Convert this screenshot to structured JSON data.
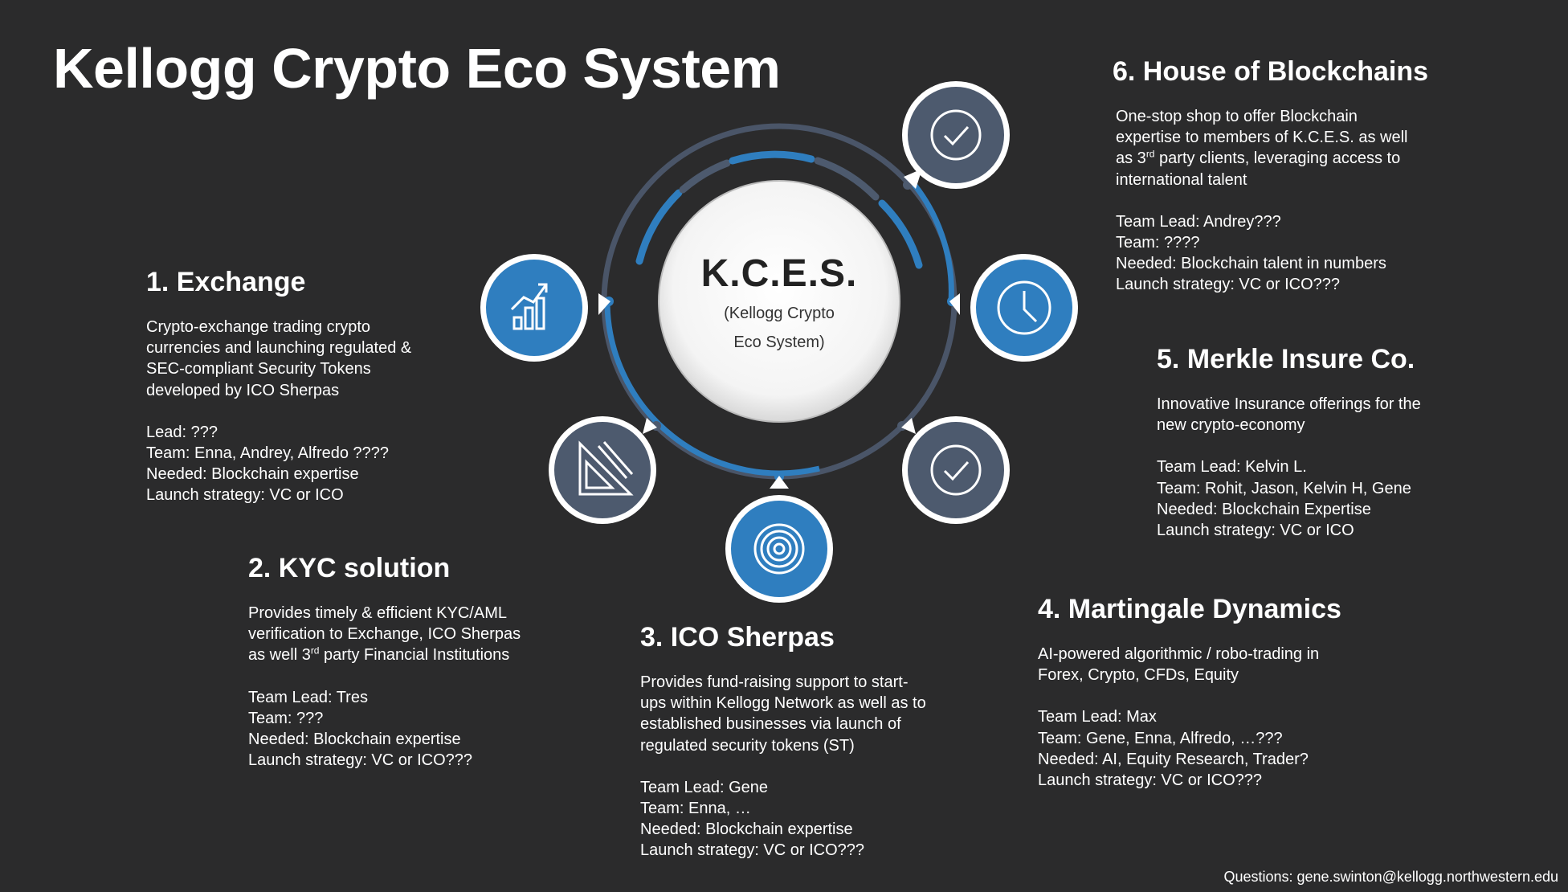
{
  "title": "Kellogg Crypto Eco System",
  "center": {
    "title": "K.C.E.S.",
    "subtitle_line1": "(Kellogg Crypto",
    "subtitle_line2": "Eco System)"
  },
  "colors": {
    "background": "#2b2b2c",
    "accent_blue": "#2f7ebf",
    "slate": "#4d5a6e"
  },
  "nodes": [
    {
      "id": "exchange",
      "icon": "bar-chart-growth-icon",
      "color": "#2f7ebf"
    },
    {
      "id": "kyc",
      "icon": "ruler-triangle-icon",
      "color": "#4d5a6e"
    },
    {
      "id": "ico",
      "icon": "target-icon",
      "color": "#2f7ebf"
    },
    {
      "id": "martingale",
      "icon": "checkmark-icon",
      "color": "#4d5a6e"
    },
    {
      "id": "merkle",
      "icon": "clock-icon",
      "color": "#2f7ebf"
    },
    {
      "id": "house",
      "icon": "checkmark-icon",
      "color": "#4d5a6e"
    }
  ],
  "sections": {
    "exchange": {
      "heading": "1. Exchange",
      "desc": [
        "Crypto-exchange trading crypto",
        "currencies and launching regulated &",
        "SEC-compliant Security Tokens",
        "developed by ICO Sherpas"
      ],
      "info": [
        "Lead:  ???",
        "Team:  Enna, Andrey, Alfredo ????",
        "Needed: Blockchain expertise",
        "Launch strategy: VC or ICO"
      ]
    },
    "kyc": {
      "heading": "2. KYC solution",
      "desc": [
        "Provides timely & efficient KYC/AML",
        "verification to Exchange, ICO Sherpas"
      ],
      "desc_line3_pre": "as well  3",
      "desc_line3_sup": "rd",
      "desc_line3_post": " party Financial Institutions",
      "info": [
        "Team Lead: Tres",
        "Team: ???",
        "Needed: Blockchain expertise",
        "Launch strategy: VC or ICO???"
      ]
    },
    "ico": {
      "heading": "3. ICO Sherpas",
      "desc": [
        "Provides fund-raising support to start-",
        "ups within Kellogg Network as well as to",
        "established businesses via launch of",
        "regulated security tokens (ST)"
      ],
      "info": [
        "Team Lead: Gene",
        "Team: Enna, …",
        "Needed: Blockchain expertise",
        "Launch strategy: VC or ICO???"
      ]
    },
    "martingale": {
      "heading": "4. Martingale Dynamics",
      "desc": [
        "AI-powered algorithmic / robo-trading in",
        "Forex, Crypto, CFDs, Equity"
      ],
      "info": [
        "Team Lead: Max",
        "Team: Gene, Enna, Alfredo, …???",
        "Needed: AI, Equity Research, Trader?",
        "Launch strategy: VC or ICO???"
      ]
    },
    "merkle": {
      "heading": "5. Merkle Insure Co.",
      "desc": [
        "Innovative Insurance offerings for the",
        "new crypto-economy"
      ],
      "info": [
        "Team Lead: Kelvin L.",
        "Team: Rohit, Jason, Kelvin H, Gene",
        "Needed: Blockchain Expertise",
        "Launch strategy: VC or ICO"
      ]
    },
    "house": {
      "heading": "6. House of Blockchains",
      "desc": [
        "One-stop shop to offer Blockchain",
        "expertise to members of  K.C.E.S. as well"
      ],
      "desc_line3_pre": "as 3",
      "desc_line3_sup": "rd",
      "desc_line3_post": " party clients, leveraging access to",
      "desc_line4": "international talent",
      "info": [
        "Team Lead: Andrey???",
        "Team: ????",
        "Needed: Blockchain  talent in numbers",
        "Launch strategy: VC or ICO???"
      ]
    }
  },
  "footer": "Questions: gene.swinton@kellogg.northwestern.edu"
}
